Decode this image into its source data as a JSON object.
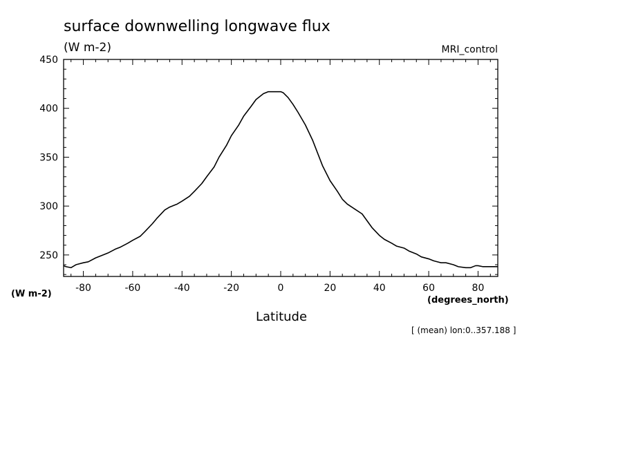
{
  "chart_data": {
    "type": "line",
    "title": "surface downwelling longwave flux",
    "subtitle": "(W m-2)",
    "dataset_label": "MRI_control",
    "ylabel_bottom": "(W m-2)",
    "xlabel": "Latitude",
    "xunits": "(degrees_north)",
    "footnote": "[ (mean) lon:0..357.188 ]",
    "xlim": [
      -88,
      88
    ],
    "ylim": [
      228,
      450
    ],
    "xticks": [
      -80,
      -60,
      -40,
      -20,
      0,
      20,
      40,
      60,
      80
    ],
    "yticks": [
      250,
      300,
      350,
      400,
      450
    ],
    "grid": false,
    "series": [
      {
        "x": [
          -88,
          -87,
          -85,
          -83,
          -80,
          -78,
          -75,
          -72,
          -70,
          -67,
          -65,
          -62,
          -60,
          -57,
          -55,
          -52,
          -50,
          -47,
          -45,
          -42,
          -40,
          -37,
          -35,
          -32,
          -30,
          -27,
          -25,
          -22,
          -20,
          -17,
          -15,
          -12,
          -10,
          -7,
          -5,
          -3,
          -1,
          0,
          1,
          3,
          5,
          7,
          10,
          13,
          15,
          17,
          20,
          23,
          25,
          27,
          30,
          33,
          35,
          37,
          40,
          42,
          45,
          47,
          50,
          52,
          55,
          57,
          60,
          62,
          65,
          67,
          70,
          72,
          75,
          77,
          79,
          80,
          82,
          84,
          85,
          86,
          87,
          88
        ],
        "y": [
          239,
          238,
          237,
          240,
          242,
          243,
          247,
          250,
          252,
          256,
          258,
          262,
          265,
          269,
          274,
          282,
          288,
          296,
          299,
          302,
          305,
          310,
          315,
          323,
          330,
          340,
          350,
          362,
          372,
          383,
          392,
          402,
          409,
          415,
          417,
          417,
          417,
          417,
          416,
          411,
          404,
          396,
          383,
          367,
          354,
          341,
          326,
          315,
          307,
          302,
          297,
          292,
          285,
          278,
          270,
          266,
          262,
          259,
          257,
          254,
          251,
          248,
          246,
          244,
          242,
          242,
          240,
          238,
          237,
          237,
          239,
          239,
          238,
          238,
          238,
          238,
          238,
          238
        ]
      }
    ]
  }
}
